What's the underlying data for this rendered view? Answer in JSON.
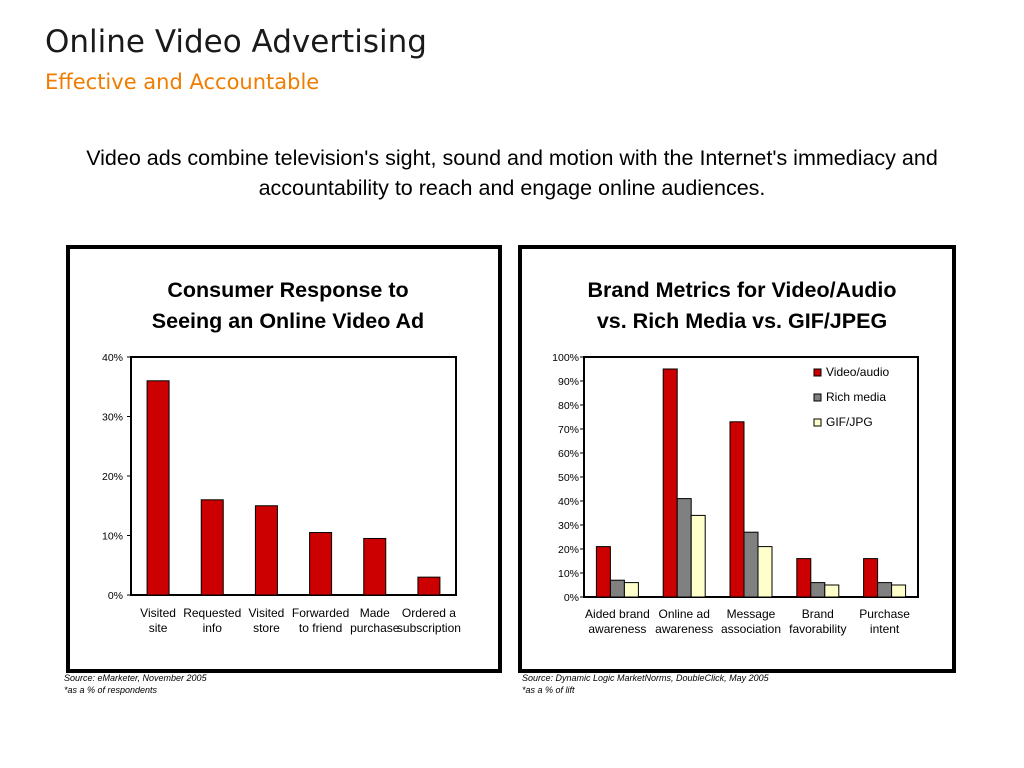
{
  "slide": {
    "title": "Online Video Advertising",
    "subtitle": "Effective and Accountable",
    "intro": "Video ads combine television's sight, sound and motion with the Internet's immediacy and accountability to reach and engage online audiences."
  },
  "colors": {
    "subtitle": "#f07d00",
    "video_audio": "#cc0000",
    "rich_media": "#808080",
    "gif_jpg": "#ffffcc"
  },
  "chart_data": [
    {
      "type": "bar",
      "title_lines": [
        "Consumer Response to",
        "Seeing an Online Video Ad"
      ],
      "categories": [
        [
          "Visited",
          "site"
        ],
        [
          "Requested",
          "info"
        ],
        [
          "Visited",
          "store"
        ],
        [
          "Forwarded",
          "to friend"
        ],
        [
          "Made",
          "purchase"
        ],
        [
          "Ordered a",
          "subscription"
        ]
      ],
      "values": [
        36,
        16,
        15,
        10.5,
        9.5,
        3
      ],
      "ylim": [
        0,
        40
      ],
      "yticks": [
        "0%",
        "10%",
        "20%",
        "30%",
        "40%"
      ],
      "grid": false,
      "source": "Source: eMarketer, November 2005",
      "note": "*as a % of respondents"
    },
    {
      "type": "bar",
      "title_lines": [
        "Brand Metrics for Video/Audio",
        "vs. Rich Media vs. GIF/JPEG"
      ],
      "categories": [
        [
          "Aided brand",
          "awareness"
        ],
        [
          "Online ad",
          "awareness"
        ],
        [
          "Message",
          "association"
        ],
        [
          "Brand",
          "favorability"
        ],
        [
          "Purchase",
          "intent"
        ]
      ],
      "series": [
        {
          "name": "Video/audio",
          "values": [
            21,
            95,
            73,
            16,
            16
          ]
        },
        {
          "name": "Rich media",
          "values": [
            7,
            41,
            27,
            6,
            6
          ]
        },
        {
          "name": "GIF/JPG",
          "values": [
            6,
            34,
            21,
            5,
            5
          ]
        }
      ],
      "ylim": [
        0,
        100
      ],
      "yticks": [
        "0%",
        "10%",
        "20%",
        "30%",
        "40%",
        "50%",
        "60%",
        "70%",
        "80%",
        "90%",
        "100%"
      ],
      "legend_position": "top-right",
      "grid": false,
      "source": "Source: Dynamic Logic MarketNorms, DoubleClick, May 2005",
      "note": "*as a % of lift"
    }
  ]
}
